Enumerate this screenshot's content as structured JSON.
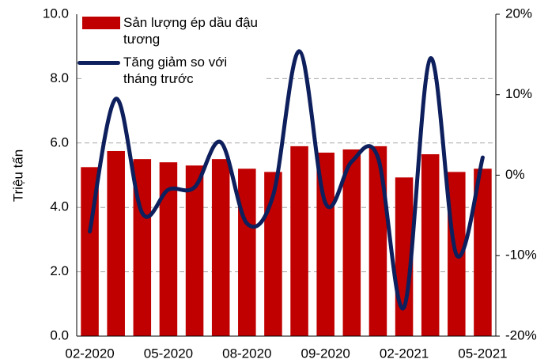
{
  "chart_data": {
    "type": "bar_line",
    "y_label": "Triệu tấn",
    "categories": [
      "02-2020",
      null,
      null,
      "05-2020",
      null,
      null,
      "08-2020",
      null,
      null,
      "09-2020",
      null,
      null,
      "02-2021",
      null,
      null,
      "05-2021"
    ],
    "series": [
      {
        "name": "Sản lượng ép dầu đậu tương",
        "type": "bar",
        "color": "#c00000",
        "axis": "y",
        "values": [
          5.25,
          5.75,
          5.5,
          5.4,
          5.3,
          5.5,
          5.2,
          5.1,
          5.9,
          5.7,
          5.8,
          5.9,
          4.93,
          5.65,
          5.1,
          5.2
        ]
      },
      {
        "name": "Tăng giảm so với tháng trước",
        "type": "line",
        "color": "#0d1f5c",
        "axis": "y2",
        "values": [
          -7.0,
          9.5,
          -4.7,
          -1.8,
          -1.5,
          4.1,
          -6.0,
          -2.5,
          15.4,
          -3.5,
          1.7,
          2.2,
          -16.4,
          14.5,
          -9.9,
          2.2
        ]
      }
    ],
    "ylim": [
      0,
      10
    ],
    "yticks": [
      {
        "value": 0,
        "label": "0.0"
      },
      {
        "value": 2,
        "label": "2.0"
      },
      {
        "value": 4,
        "label": "4.0"
      },
      {
        "value": 6,
        "label": "6.0"
      },
      {
        "value": 8,
        "label": "8.0"
      },
      {
        "value": 10,
        "label": "10.0"
      }
    ],
    "y2lim": [
      -20,
      20
    ],
    "y2ticks": [
      {
        "value": -20,
        "label": "-20%"
      },
      {
        "value": -10,
        "label": "-10%"
      },
      {
        "value": 0,
        "label": "0%"
      },
      {
        "value": 10,
        "label": "10%"
      },
      {
        "value": 20,
        "label": "20%"
      }
    ],
    "grid": true,
    "legend": "top-left"
  }
}
